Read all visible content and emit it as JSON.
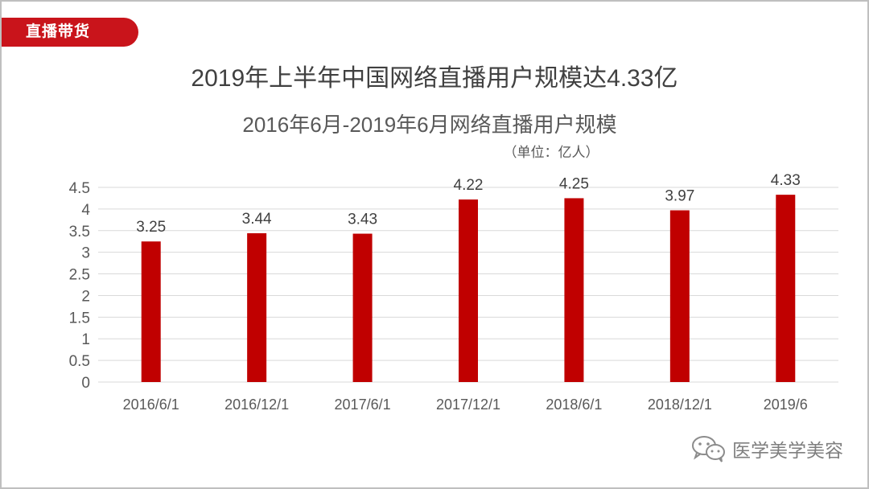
{
  "tag": {
    "label": "直播带货"
  },
  "main_title": "2019年上半年中国网络直播用户规模达4.33亿",
  "watermark": {
    "text": "医学美学美容",
    "icon": "wechat-icon"
  },
  "colors": {
    "bar": "#c00000",
    "tag": "#c9141b"
  },
  "chart_data": {
    "type": "bar",
    "title": "2016年6月-2019年6月网络直播用户规模",
    "subtitle": "（单位：亿人）",
    "categories": [
      "2016/6/1",
      "2016/12/1",
      "2017/6/1",
      "2017/12/1",
      "2018/6/1",
      "2018/12/1",
      "2019/6"
    ],
    "values": [
      3.25,
      3.44,
      3.43,
      4.22,
      4.25,
      3.97,
      4.33
    ],
    "data_labels": [
      "3.25",
      "3.44",
      "3.43",
      "4.22",
      "4.25",
      "3.97",
      "4.33"
    ],
    "yticks": [
      "0",
      "0.5",
      "1",
      "1.5",
      "2",
      "2.5",
      "3",
      "3.5",
      "4",
      "4.5"
    ],
    "ylim": [
      0,
      4.5
    ],
    "xlabel": "",
    "ylabel": "",
    "grid": true,
    "legend": "none"
  }
}
